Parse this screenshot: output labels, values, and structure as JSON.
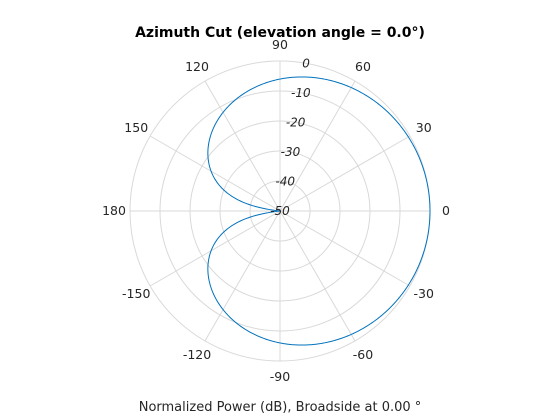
{
  "chart_data": {
    "type": "polar-line",
    "title": "Azimuth Cut (elevation angle = 0.0°)",
    "xlabel": "Normalized Power (dB), Broadside at 0.00 °",
    "theta_ticks": [
      "0",
      "30",
      "60",
      "90",
      "120",
      "150",
      "180",
      "-150",
      "-120",
      "-90",
      "-60",
      "-30"
    ],
    "theta_tick_values": [
      0,
      30,
      60,
      90,
      120,
      150,
      180,
      210,
      240,
      270,
      300,
      330
    ],
    "r_ticks": [
      "0",
      "-10",
      "-20",
      "-30",
      "-40",
      "-50"
    ],
    "r_tick_values": [
      0,
      -10,
      -20,
      -30,
      -40,
      -50
    ],
    "r_lim": [
      -50,
      0
    ],
    "r_tick_angle_deg": 80,
    "grid": true,
    "series": [
      {
        "model": "cardioid 20*log10((1+cos(theta))/2)",
        "color": "#0072bd",
        "theta_deg": [
          -180,
          -170,
          -160,
          -150,
          -140,
          -130,
          -120,
          -110,
          -100,
          -90,
          -80,
          -70,
          -60,
          -50,
          -40,
          -30,
          -20,
          -10,
          0,
          10,
          20,
          30,
          40,
          50,
          60,
          70,
          80,
          90,
          100,
          110,
          120,
          130,
          140,
          150,
          160,
          170,
          180
        ],
        "r_db": [
          -50.0,
          -35.2,
          -23.3,
          -22.9,
          -16.6,
          -12.9,
          -12.0,
          -8.3,
          -6.6,
          -6.0,
          -3.6,
          -2.9,
          -2.5,
          -1.4,
          -1.0,
          -0.6,
          -0.3,
          -0.1,
          0.0,
          -0.1,
          -0.3,
          -0.6,
          -1.0,
          -1.4,
          -2.5,
          -2.9,
          -3.6,
          -6.0,
          -6.6,
          -8.3,
          -12.0,
          -12.9,
          -16.6,
          -22.9,
          -23.3,
          -35.2,
          -50.0
        ]
      }
    ]
  }
}
